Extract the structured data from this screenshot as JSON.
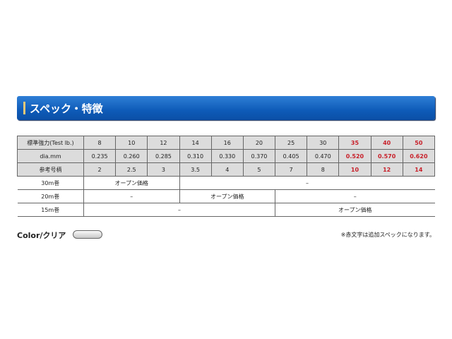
{
  "header": {
    "title": "スペック・特徴",
    "accent_color": "#e8c878",
    "bar_color": "#1566c4"
  },
  "table": {
    "rows": [
      {
        "label": "標準強力(Test lb.)",
        "values": [
          "8",
          "10",
          "12",
          "14",
          "16",
          "20",
          "25",
          "30",
          "35",
          "40",
          "50"
        ]
      },
      {
        "label": "dia.mm",
        "values": [
          "0.235",
          "0.260",
          "0.285",
          "0.310",
          "0.330",
          "0.370",
          "0.405",
          "0.470",
          "0.520",
          "0.570",
          "0.620"
        ]
      },
      {
        "label": "参考号柄",
        "values": [
          "2",
          "2.5",
          "3",
          "3.5",
          "4",
          "5",
          "7",
          "8",
          "10",
          "12",
          "14"
        ]
      }
    ],
    "price_rows": [
      {
        "label": "30m巻",
        "cells": [
          "オープン価格",
          "–"
        ]
      },
      {
        "label": "20m巻",
        "cells": [
          "–",
          "オープン価格",
          "–"
        ]
      },
      {
        "label": "15m巻",
        "cells": [
          "–",
          "オープン価格"
        ]
      }
    ],
    "added_spec_color": "#c8202a"
  },
  "color": {
    "label": "Color/クリア"
  },
  "note": "※赤文字は追加スペックになります。"
}
